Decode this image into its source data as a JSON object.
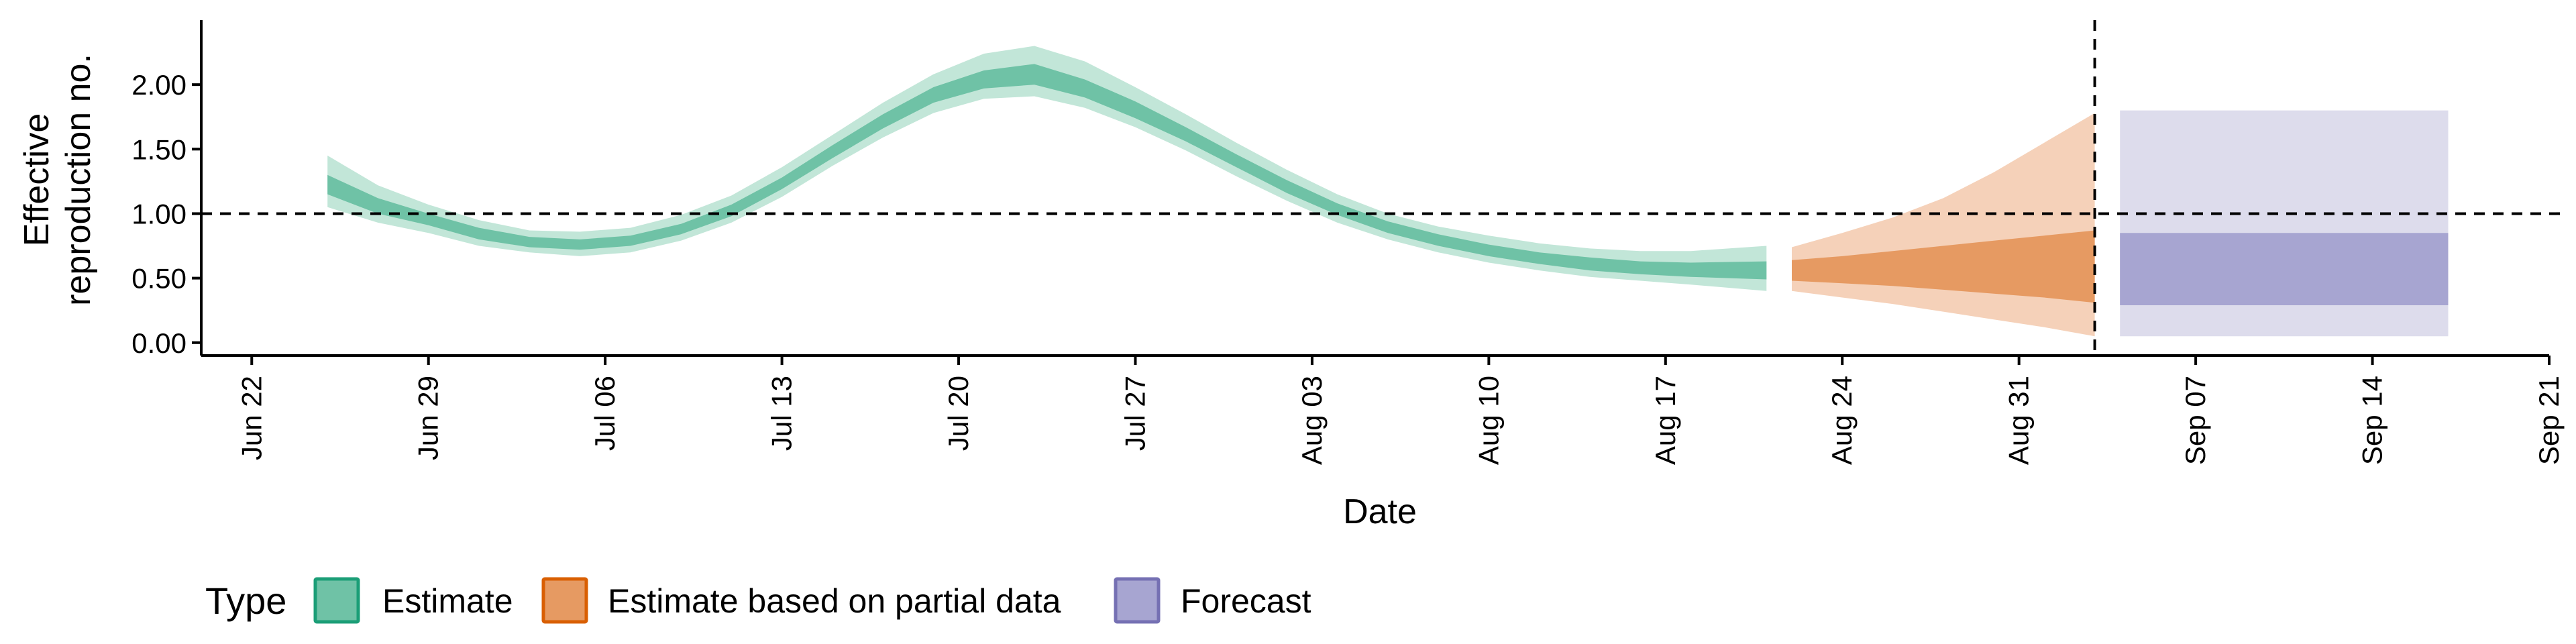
{
  "chart_data": {
    "type": "area",
    "xlabel": "Date",
    "ylabel_lines": [
      "Effective",
      "reproduction no."
    ],
    "xlim": [
      "2021-06-20",
      "2021-09-21"
    ],
    "ylim": [
      -0.1,
      2.5
    ],
    "y_ticks": [
      {
        "value": 0.0,
        "label": "0.00"
      },
      {
        "value": 0.5,
        "label": "0.50"
      },
      {
        "value": 1.0,
        "label": "1.00"
      },
      {
        "value": 1.5,
        "label": "1.50"
      },
      {
        "value": 2.0,
        "label": "2.00"
      }
    ],
    "x_ticks": [
      {
        "date": "2021-06-22",
        "label": "Jun 22"
      },
      {
        "date": "2021-06-29",
        "label": "Jun 29"
      },
      {
        "date": "2021-07-06",
        "label": "Jul 06"
      },
      {
        "date": "2021-07-13",
        "label": "Jul 13"
      },
      {
        "date": "2021-07-20",
        "label": "Jul 20"
      },
      {
        "date": "2021-07-27",
        "label": "Jul 27"
      },
      {
        "date": "2021-08-03",
        "label": "Aug 03"
      },
      {
        "date": "2021-08-10",
        "label": "Aug 10"
      },
      {
        "date": "2021-08-17",
        "label": "Aug 17"
      },
      {
        "date": "2021-08-24",
        "label": "Aug 24"
      },
      {
        "date": "2021-08-31",
        "label": "Aug 31"
      },
      {
        "date": "2021-09-07",
        "label": "Sep 07"
      },
      {
        "date": "2021-09-14",
        "label": "Sep 14"
      },
      {
        "date": "2021-09-21",
        "label": "Sep 21"
      }
    ],
    "reference_line_y": 1.0,
    "vertical_line_date": "2021-09-03",
    "legend": {
      "title": "Type",
      "placement": "bottom-left",
      "items": [
        {
          "label": "Estimate",
          "fill": "#6fc2a6",
          "stroke": "#1b9e77"
        },
        {
          "label": "Estimate based on partial data",
          "fill": "#e69a62",
          "stroke": "#d95f02"
        },
        {
          "label": "Forecast",
          "fill": "#a7a5d1",
          "stroke": "#7570b3"
        }
      ]
    },
    "series": [
      {
        "name": "Estimate",
        "outer_color": "#c2e6d8",
        "inner_color": "#6fc2a6",
        "points": [
          {
            "date": "2021-06-25",
            "lo90": 1.05,
            "lo50": 1.15,
            "hi50": 1.3,
            "hi90": 1.45
          },
          {
            "date": "2021-06-27",
            "lo90": 0.93,
            "lo50": 1.0,
            "hi50": 1.12,
            "hi90": 1.22
          },
          {
            "date": "2021-06-29",
            "lo90": 0.85,
            "lo50": 0.91,
            "hi50": 1.0,
            "hi90": 1.07
          },
          {
            "date": "2021-07-01",
            "lo90": 0.75,
            "lo50": 0.8,
            "hi50": 0.89,
            "hi90": 0.95
          },
          {
            "date": "2021-07-03",
            "lo90": 0.7,
            "lo50": 0.74,
            "hi50": 0.82,
            "hi90": 0.87
          },
          {
            "date": "2021-07-05",
            "lo90": 0.67,
            "lo50": 0.72,
            "hi50": 0.8,
            "hi90": 0.86
          },
          {
            "date": "2021-07-07",
            "lo90": 0.7,
            "lo50": 0.75,
            "hi50": 0.83,
            "hi90": 0.89
          },
          {
            "date": "2021-07-09",
            "lo90": 0.79,
            "lo50": 0.84,
            "hi50": 0.92,
            "hi90": 0.99
          },
          {
            "date": "2021-07-11",
            "lo90": 0.93,
            "lo50": 0.98,
            "hi50": 1.07,
            "hi90": 1.14
          },
          {
            "date": "2021-07-13",
            "lo90": 1.13,
            "lo50": 1.19,
            "hi50": 1.28,
            "hi90": 1.36
          },
          {
            "date": "2021-07-15",
            "lo90": 1.37,
            "lo50": 1.43,
            "hi50": 1.53,
            "hi90": 1.61
          },
          {
            "date": "2021-07-17",
            "lo90": 1.59,
            "lo50": 1.66,
            "hi50": 1.77,
            "hi90": 1.86
          },
          {
            "date": "2021-07-19",
            "lo90": 1.78,
            "lo50": 1.86,
            "hi50": 1.98,
            "hi90": 2.08
          },
          {
            "date": "2021-07-21",
            "lo90": 1.89,
            "lo50": 1.97,
            "hi50": 2.11,
            "hi90": 2.24
          },
          {
            "date": "2021-07-23",
            "lo90": 1.91,
            "lo50": 2.0,
            "hi50": 2.16,
            "hi90": 2.3
          },
          {
            "date": "2021-07-25",
            "lo90": 1.82,
            "lo50": 1.9,
            "hi50": 2.04,
            "hi90": 2.18
          },
          {
            "date": "2021-07-27",
            "lo90": 1.67,
            "lo50": 1.74,
            "hi50": 1.87,
            "hi90": 1.98
          },
          {
            "date": "2021-07-29",
            "lo90": 1.49,
            "lo50": 1.56,
            "hi50": 1.67,
            "hi90": 1.77
          },
          {
            "date": "2021-07-31",
            "lo90": 1.29,
            "lo50": 1.36,
            "hi50": 1.46,
            "hi90": 1.55
          },
          {
            "date": "2021-08-02",
            "lo90": 1.1,
            "lo50": 1.16,
            "hi50": 1.26,
            "hi90": 1.34
          },
          {
            "date": "2021-08-04",
            "lo90": 0.93,
            "lo50": 0.99,
            "hi50": 1.08,
            "hi90": 1.15
          },
          {
            "date": "2021-08-06",
            "lo90": 0.8,
            "lo50": 0.85,
            "hi50": 0.94,
            "hi90": 1.0
          },
          {
            "date": "2021-08-08",
            "lo90": 0.7,
            "lo50": 0.75,
            "hi50": 0.84,
            "hi90": 0.9
          },
          {
            "date": "2021-08-10",
            "lo90": 0.62,
            "lo50": 0.67,
            "hi50": 0.76,
            "hi90": 0.83
          },
          {
            "date": "2021-08-12",
            "lo90": 0.56,
            "lo50": 0.61,
            "hi50": 0.7,
            "hi90": 0.77
          },
          {
            "date": "2021-08-14",
            "lo90": 0.51,
            "lo50": 0.56,
            "hi50": 0.66,
            "hi90": 0.73
          },
          {
            "date": "2021-08-16",
            "lo90": 0.48,
            "lo50": 0.53,
            "hi50": 0.63,
            "hi90": 0.71
          },
          {
            "date": "2021-08-18",
            "lo90": 0.45,
            "lo50": 0.51,
            "hi50": 0.62,
            "hi90": 0.71
          },
          {
            "date": "2021-08-21",
            "lo90": 0.4,
            "lo50": 0.49,
            "hi50": 0.63,
            "hi90": 0.75
          }
        ]
      },
      {
        "name": "Estimate based on partial data",
        "outer_color": "#f5d1b9",
        "inner_color": "#e69a62",
        "points": [
          {
            "date": "2021-08-22",
            "lo90": 0.4,
            "lo50": 0.48,
            "hi50": 0.64,
            "hi90": 0.74
          },
          {
            "date": "2021-08-24",
            "lo90": 0.35,
            "lo50": 0.46,
            "hi50": 0.67,
            "hi90": 0.85
          },
          {
            "date": "2021-08-26",
            "lo90": 0.3,
            "lo50": 0.44,
            "hi50": 0.71,
            "hi90": 0.97
          },
          {
            "date": "2021-08-28",
            "lo90": 0.24,
            "lo50": 0.41,
            "hi50": 0.75,
            "hi90": 1.12
          },
          {
            "date": "2021-08-30",
            "lo90": 0.18,
            "lo50": 0.38,
            "hi50": 0.79,
            "hi90": 1.32
          },
          {
            "date": "2021-09-01",
            "lo90": 0.12,
            "lo50": 0.35,
            "hi50": 0.83,
            "hi90": 1.55
          },
          {
            "date": "2021-09-03",
            "lo90": 0.05,
            "lo50": 0.31,
            "hi50": 0.87,
            "hi90": 1.78
          }
        ]
      },
      {
        "name": "Forecast",
        "outer_color": "#dddcec",
        "inner_color": "#a7a5d1",
        "points": [
          {
            "date": "2021-09-04",
            "lo90": 0.05,
            "lo50": 0.29,
            "hi50": 0.85,
            "hi90": 1.8
          },
          {
            "date": "2021-09-17",
            "lo90": 0.05,
            "lo50": 0.29,
            "hi50": 0.85,
            "hi90": 1.8
          }
        ]
      }
    ]
  }
}
